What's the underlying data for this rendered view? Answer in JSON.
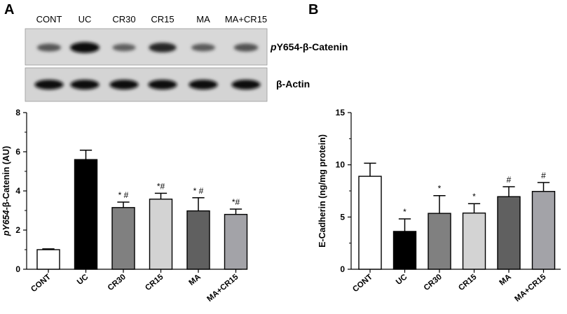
{
  "panels": [
    {
      "letter": "A",
      "blot": {
        "lanes": [
          "CONT",
          "UC",
          "CR30",
          "CR15",
          "MA",
          "MA+CR15"
        ],
        "rows": [
          {
            "label_italic": "p",
            "label_rest": "Y654-β-Catenin",
            "intensities": [
              0.45,
              1.0,
              0.38,
              0.8,
              0.42,
              0.48
            ]
          },
          {
            "label_italic": "",
            "label_rest": "β-Actin",
            "intensities": [
              0.95,
              0.95,
              0.95,
              0.95,
              0.95,
              0.95
            ]
          }
        ]
      },
      "chart_data": {
        "type": "bar",
        "categories": [
          "CONT",
          "UC",
          "CR30",
          "CR15",
          "MA",
          "MA+CR15"
        ],
        "values": [
          1.0,
          5.6,
          3.15,
          3.58,
          2.98,
          2.8
        ],
        "errors": [
          0.04,
          0.48,
          0.28,
          0.3,
          0.67,
          0.27
        ],
        "annotations": [
          "",
          "",
          "* #",
          "*#",
          "* #",
          "*#"
        ],
        "colors": [
          "#ffffff",
          "#000000",
          "#808080",
          "#d3d3d3",
          "#606060",
          "#a3a3a8"
        ],
        "ylabel_italic": "pY654",
        "ylabel_rest": "-β-Catenin (AU)",
        "xlabel": "",
        "ylim": [
          0,
          8
        ],
        "yticks": [
          "0",
          "2",
          "4",
          "6",
          "8"
        ]
      }
    },
    {
      "letter": "B",
      "chart_data": {
        "type": "bar",
        "categories": [
          "CONT",
          "UC",
          "CR30",
          "CR15",
          "MA",
          "MA+CR15"
        ],
        "values": [
          8.9,
          3.62,
          5.35,
          5.38,
          6.95,
          7.45
        ],
        "errors": [
          1.25,
          1.2,
          1.7,
          0.9,
          0.95,
          0.85
        ],
        "annotations": [
          "",
          "*",
          "*",
          "*",
          "#",
          "#"
        ],
        "colors": [
          "#ffffff",
          "#000000",
          "#808080",
          "#d3d3d3",
          "#606060",
          "#a3a3a8"
        ],
        "ylabel": "E-Cadherin (ng/mg protein)",
        "xlabel": "",
        "ylim": [
          0,
          15
        ],
        "yticks": [
          "0",
          "5",
          "10",
          "15"
        ]
      }
    }
  ]
}
